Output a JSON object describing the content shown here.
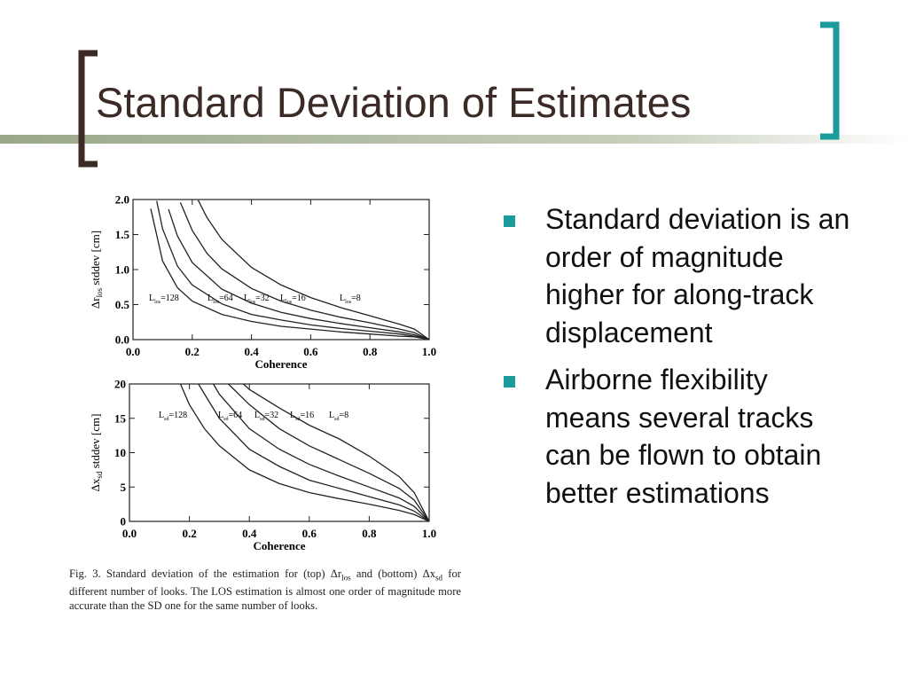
{
  "slide": {
    "title": "Standard Deviation of Estimates",
    "bullets": [
      "Standard deviation is an order of magnitude higher for along-track displacement",
      "Airborne flexibility means several tracks can be flown to obtain better estimations"
    ],
    "caption": [
      "Fig. 3.   Standard deviation of the estimation for (top) Δr",
      "los",
      " and (bottom) Δx",
      "sd",
      " for different number of looks. The LOS estimation is almost one order of magnitude more accurate than the SD one for the same number of looks."
    ]
  },
  "chart_data": [
    {
      "type": "line",
      "xlabel": "Coherence",
      "ylabel_parts": [
        "Δr",
        "los",
        " stddev [cm]"
      ],
      "color": "#222222",
      "xlim": [
        0,
        1
      ],
      "xticks": [
        {
          "value": 0,
          "label": "0.0"
        },
        0.2,
        0.4,
        0.6,
        0.8,
        {
          "value": 1,
          "label": "1.0"
        }
      ],
      "ylim": [
        0,
        2
      ],
      "yticks": [
        {
          "value": 0,
          "label": "0.0"
        },
        0.5,
        {
          "value": 1,
          "label": "1.0"
        },
        1.5,
        {
          "value": 2,
          "label": "2.0"
        }
      ],
      "series": [
        {
          "label_parts": [
            "L",
            "los",
            "=128"
          ],
          "x": [
            0.06,
            0.1,
            0.15,
            0.2,
            0.3,
            0.4,
            0.5,
            0.6,
            0.7,
            0.8,
            0.9,
            0.95,
            1.0
          ],
          "values": [
            1.87,
            1.12,
            0.74,
            0.55,
            0.36,
            0.26,
            0.19,
            0.15,
            0.11,
            0.08,
            0.05,
            0.04,
            0
          ]
        },
        {
          "label_parts": [
            "L",
            "los",
            "=64"
          ],
          "x": [
            0.08,
            0.1,
            0.15,
            0.2,
            0.3,
            0.4,
            0.5,
            0.6,
            0.7,
            0.8,
            0.9,
            0.95,
            1.0
          ],
          "values": [
            1.98,
            1.58,
            1.05,
            0.78,
            0.51,
            0.36,
            0.28,
            0.21,
            0.16,
            0.12,
            0.08,
            0.05,
            0
          ]
        },
        {
          "label_parts": [
            "L",
            "los",
            "=32"
          ],
          "x": [
            0.12,
            0.15,
            0.2,
            0.3,
            0.4,
            0.5,
            0.6,
            0.7,
            0.8,
            0.9,
            0.95,
            1.0
          ],
          "values": [
            1.86,
            1.48,
            1.1,
            0.72,
            0.52,
            0.39,
            0.3,
            0.23,
            0.17,
            0.11,
            0.07,
            0
          ]
        },
        {
          "label_parts": [
            "L",
            "los",
            "=16"
          ],
          "x": [
            0.16,
            0.2,
            0.25,
            0.3,
            0.4,
            0.5,
            0.6,
            0.7,
            0.8,
            0.9,
            0.95,
            1.0
          ],
          "values": [
            1.96,
            1.56,
            1.23,
            1.01,
            0.73,
            0.55,
            0.42,
            0.32,
            0.24,
            0.15,
            0.1,
            0
          ]
        },
        {
          "label_parts": [
            "L",
            "los",
            "=8"
          ],
          "x": [
            0.22,
            0.25,
            0.3,
            0.4,
            0.5,
            0.6,
            0.7,
            0.8,
            0.9,
            0.95,
            1.0
          ],
          "values": [
            1.99,
            1.74,
            1.43,
            1.03,
            0.78,
            0.6,
            0.46,
            0.34,
            0.22,
            0.15,
            0
          ]
        }
      ]
    },
    {
      "type": "line",
      "xlabel": "Coherence",
      "ylabel_parts": [
        "Δx",
        "sd",
        " stddev [cm]"
      ],
      "color": "#222222",
      "xlim": [
        0,
        1
      ],
      "xticks": [
        {
          "value": 0,
          "label": "0.0"
        },
        0.2,
        0.4,
        0.6,
        0.8,
        {
          "value": 1,
          "label": "1.0"
        }
      ],
      "ylim": [
        0,
        20
      ],
      "yticks": [
        0,
        5,
        10,
        15,
        20
      ],
      "series": [
        {
          "label_parts": [
            "L",
            "sd",
            "=128"
          ],
          "x": [
            0.17,
            0.2,
            0.25,
            0.3,
            0.4,
            0.5,
            0.6,
            0.7,
            0.8,
            0.9,
            0.95,
            1.0
          ],
          "values": [
            20,
            17,
            13.5,
            11,
            7.5,
            5.5,
            4.2,
            3.3,
            2.5,
            1.6,
            1.0,
            0
          ]
        },
        {
          "label_parts": [
            "L",
            "sd",
            "=64"
          ],
          "x": [
            0.23,
            0.3,
            0.4,
            0.5,
            0.6,
            0.7,
            0.8,
            0.9,
            0.95,
            1.0
          ],
          "values": [
            20,
            15,
            10.5,
            8,
            6,
            4.8,
            3.6,
            2.4,
            1.5,
            0
          ]
        },
        {
          "label_parts": [
            "L",
            "sd",
            "=32"
          ],
          "x": [
            0.28,
            0.3,
            0.4,
            0.5,
            0.6,
            0.7,
            0.8,
            0.9,
            0.95,
            1.0
          ],
          "values": [
            20,
            18.5,
            13.5,
            10.5,
            8.3,
            6.6,
            5,
            3.4,
            2.2,
            0
          ]
        },
        {
          "label_parts": [
            "L",
            "sd",
            "=16"
          ],
          "x": [
            0.33,
            0.4,
            0.5,
            0.6,
            0.7,
            0.8,
            0.9,
            0.95,
            1.0
          ],
          "values": [
            20,
            17,
            13.5,
            11,
            9,
            7,
            4.8,
            3.1,
            0
          ]
        },
        {
          "label_parts": [
            "L",
            "sd",
            "=8"
          ],
          "x": [
            0.38,
            0.4,
            0.5,
            0.6,
            0.7,
            0.8,
            0.9,
            0.95,
            1.0
          ],
          "values": [
            20,
            19.2,
            16.5,
            14,
            12,
            9.5,
            6.5,
            4.2,
            0
          ]
        }
      ]
    }
  ]
}
